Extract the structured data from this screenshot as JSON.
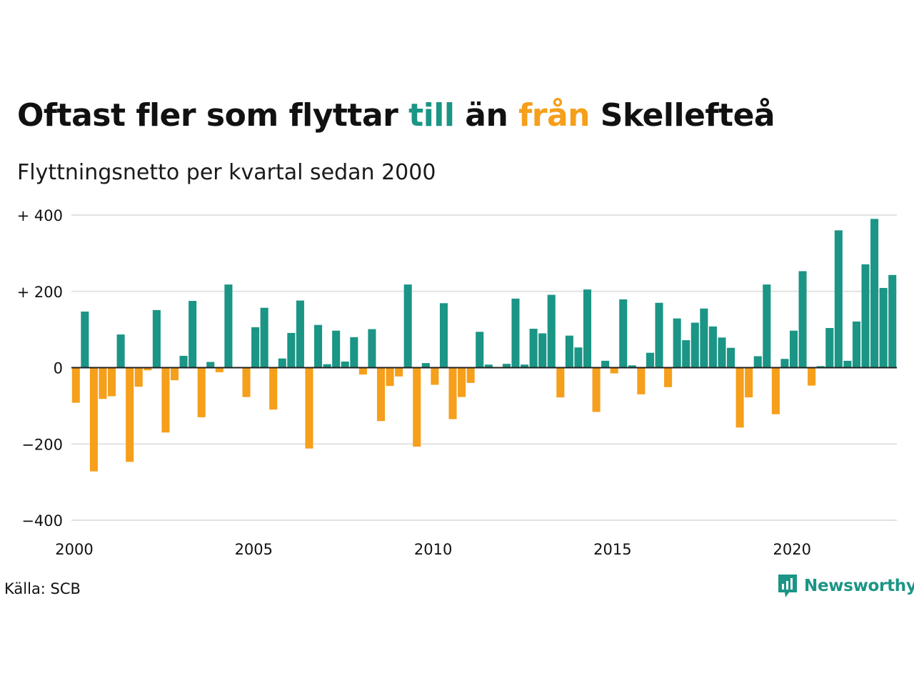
{
  "title": {
    "part1": "Oftast fler som flyttar ",
    "part2": "till",
    "part3": " än ",
    "part4": "från",
    "part5": " Skellefteå"
  },
  "subtitle": "Flyttningsnetto per kvartal sedan 2000",
  "source": "Källa: SCB",
  "logo": {
    "text": "Newsworthy",
    "icon": "newsworthy-chart-icon"
  },
  "colors": {
    "positive": "#1b9585",
    "negative": "#f59f1b",
    "grid": "#e2e2e2",
    "baseline": "#222222"
  },
  "chart_data": {
    "type": "bar",
    "title": "Oftast fler som flyttar till än från Skellefteå",
    "subtitle": "Flyttningsnetto per kvartal sedan 2000",
    "xlabel": "",
    "ylabel": "",
    "ylim": [
      -400,
      400
    ],
    "yticks": [
      {
        "value": 400,
        "label": "+ 400"
      },
      {
        "value": 200,
        "label": "+ 200"
      },
      {
        "value": 0,
        "label": "0"
      },
      {
        "value": -200,
        "label": "−200"
      },
      {
        "value": -400,
        "label": "−400"
      }
    ],
    "xticks": [
      {
        "value": 2000,
        "label": "2000"
      },
      {
        "value": 2005,
        "label": "2005"
      },
      {
        "value": 2010,
        "label": "2010"
      },
      {
        "value": 2015,
        "label": "2015"
      },
      {
        "value": 2020,
        "label": "2020"
      }
    ],
    "start_year": 2000,
    "grid": true,
    "legend": "none",
    "values": [
      -92,
      147,
      -272,
      -82,
      -75,
      87,
      -247,
      -50,
      -7,
      151,
      -170,
      -33,
      31,
      175,
      -130,
      15,
      -12,
      218,
      0,
      -77,
      106,
      157,
      -110,
      24,
      91,
      176,
      -212,
      112,
      9,
      97,
      16,
      80,
      -18,
      101,
      -140,
      -48,
      -23,
      218,
      -207,
      12,
      -45,
      169,
      -135,
      -77,
      -40,
      94,
      8,
      0,
      10,
      181,
      8,
      102,
      90,
      191,
      -78,
      84,
      53,
      205,
      -116,
      18,
      -15,
      179,
      6,
      -70,
      39,
      170,
      -51,
      129,
      72,
      118,
      155,
      108,
      79,
      52,
      -157,
      -78,
      30,
      218,
      -122,
      23,
      97,
      253,
      -47,
      4,
      104,
      360,
      18,
      121,
      271,
      390,
      209,
      243
    ]
  }
}
